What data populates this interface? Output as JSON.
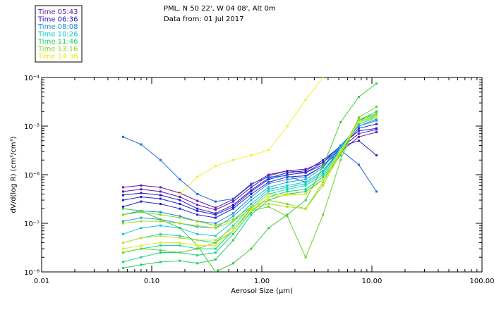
{
  "header": {
    "location": "PML, N 50 22', W 04 08', Alt 0m",
    "date_line": "Data from: 01 Jul 2017"
  },
  "chart_data": {
    "type": "line",
    "title": "PML, N 50 22', W 04 08', Alt 0m",
    "subtitle": "Data from: 01 Jul 2017",
    "xlabel": "Aerosol Size (μm)",
    "ylabel": "dV/d(log R) (cm³/cm³)",
    "xscale": "log",
    "yscale": "log",
    "xlim": [
      0.01,
      100.0
    ],
    "ylim": [
      1e-08,
      0.0001
    ],
    "x_ticks": [
      {
        "value": 0.01,
        "label": "0.01"
      },
      {
        "value": 0.1,
        "label": "0.10"
      },
      {
        "value": 1.0,
        "label": "1.00"
      },
      {
        "value": 10.0,
        "label": "10.00"
      },
      {
        "value": 100.0,
        "label": "100.00"
      }
    ],
    "y_ticks": [
      {
        "value": 1e-08,
        "label": "10⁻⁸"
      },
      {
        "value": 1e-07,
        "label": "10⁻⁷"
      },
      {
        "value": 1e-06,
        "label": "10⁻⁶"
      },
      {
        "value": 1e-05,
        "label": "10⁻⁵"
      },
      {
        "value": 0.0001,
        "label": "10⁻⁴"
      }
    ],
    "legend_position": "top-left, outside plot",
    "x": [
      0.055,
      0.08,
      0.12,
      0.18,
      0.26,
      0.38,
      0.55,
      0.8,
      1.15,
      1.7,
      2.5,
      3.6,
      5.2,
      7.6,
      11.0
    ],
    "series": [
      {
        "name": "Time 05:43",
        "color": "#6a1aa8",
        "values": [
          5.5e-07,
          6e-07,
          5.5e-07,
          4.2e-07,
          2.9e-07,
          2.1e-07,
          3.1e-07,
          6.2e-07,
          1e-06,
          1.2e-06,
          1.1e-06,
          1.6e-06,
          3e-06,
          6e-06,
          7.5e-06
        ]
      },
      {
        "name": "Time 05:43",
        "color": "#5a18b0",
        "values": [
          4.5e-07,
          5e-07,
          4.5e-07,
          3.5e-07,
          2.4e-07,
          1.9e-07,
          2.8e-07,
          5.5e-07,
          9.5e-07,
          1.2e-06,
          1.3e-06,
          1.8e-06,
          3.5e-06,
          7e-06,
          8.5e-06
        ]
      },
      {
        "name": "Time 06:36",
        "color": "#2a16c8",
        "values": [
          3.8e-07,
          4.2e-07,
          3.8e-07,
          3e-07,
          2e-07,
          1.6e-07,
          2.4e-07,
          4.8e-07,
          8.5e-07,
          1.1e-06,
          1.2e-06,
          2e-06,
          3.8e-06,
          5e-06,
          2.5e-06
        ]
      },
      {
        "name": "Time 06:36",
        "color": "#1e2ad2",
        "values": [
          3e-07,
          3.5e-07,
          3.2e-07,
          2.5e-07,
          1.8e-07,
          1.5e-07,
          2.2e-07,
          4.5e-07,
          8e-07,
          1e-06,
          1.1e-06,
          1.8e-06,
          4e-06,
          8e-06,
          9e-06
        ]
      },
      {
        "name": "Time 06:36",
        "color": "#2a1ed8",
        "values": [
          2.2e-07,
          2.8e-07,
          2.5e-07,
          2e-07,
          1.5e-07,
          1.3e-07,
          2e-07,
          4e-07,
          7e-07,
          9e-07,
          9.5e-07,
          1.5e-06,
          3.5e-06,
          9e-06,
          1.1e-05
        ]
      },
      {
        "name": "Time 08:08",
        "color": "#1a6ade",
        "values": [
          6e-06,
          4.2e-06,
          2e-06,
          8e-07,
          4e-07,
          2.8e-07,
          3.2e-07,
          6.5e-07,
          9e-07,
          9.5e-07,
          7e-07,
          1.2e-06,
          3.2e-06,
          1.6e-06,
          4.5e-07
        ]
      },
      {
        "name": "Time 08:08",
        "color": "#1a8ae0",
        "values": [
          1.5e-07,
          1.8e-07,
          1.7e-07,
          1.4e-07,
          1.1e-07,
          1e-07,
          1.6e-07,
          3.5e-07,
          6.5e-07,
          8e-07,
          9e-07,
          1.5e-06,
          4e-06,
          1e-05,
          1.3e-05
        ]
      },
      {
        "name": "Time 08:08",
        "color": "#18a8e0",
        "values": [
          1.1e-07,
          1.3e-07,
          1.2e-07,
          1e-07,
          8.5e-08,
          8e-08,
          1.4e-07,
          3e-07,
          5.5e-07,
          7e-07,
          8e-07,
          1.4e-06,
          3.8e-06,
          1e-05,
          1.4e-05
        ]
      },
      {
        "name": "Time 10:26",
        "color": "#14c8d8",
        "values": [
          6e-08,
          8e-08,
          9e-08,
          8e-08,
          6e-08,
          5.5e-08,
          1.1e-07,
          2.5e-07,
          5e-07,
          6e-07,
          7e-07,
          1.2e-06,
          3.5e-06,
          1.1e-05,
          1.5e-05
        ]
      },
      {
        "name": "Time 10:26",
        "color": "#12d4c0",
        "values": [
          4e-08,
          5e-08,
          6e-08,
          5.5e-08,
          4.5e-08,
          4e-08,
          9e-08,
          2.2e-07,
          4.5e-07,
          5.5e-07,
          6.5e-07,
          1.1e-06,
          3.2e-06,
          1.2e-05,
          1.6e-05
        ]
      },
      {
        "name": "Time 10:26",
        "color": "#10d8a8",
        "values": [
          2.5e-08,
          3e-08,
          3.5e-08,
          3.5e-08,
          3e-08,
          3e-08,
          7e-08,
          2e-07,
          4e-07,
          5e-07,
          6e-07,
          1e-06,
          3e-06,
          1.2e-05,
          1.7e-05
        ]
      },
      {
        "name": "Time 11:46",
        "color": "#12d48a",
        "values": [
          1.6e-08,
          2e-08,
          2.5e-08,
          2.5e-08,
          2.2e-08,
          2.5e-08,
          6e-08,
          1.7e-07,
          3.5e-07,
          4.5e-07,
          5e-07,
          9e-07,
          2.8e-06,
          1.3e-05,
          1.8e-05
        ]
      },
      {
        "name": "Time 11:46",
        "color": "#20d060",
        "values": [
          1.2e-08,
          1.4e-08,
          1.6e-08,
          1.7e-08,
          1.5e-08,
          1.8e-08,
          4.5e-08,
          1.5e-07,
          3e-07,
          4e-07,
          4.5e-07,
          8e-07,
          2.5e-06,
          1.3e-05,
          2e-05
        ]
      },
      {
        "name": "Time 11:46",
        "color": "#3ccc3c",
        "values": [
          2e-07,
          1.8e-07,
          1.2e-07,
          8e-08,
          3.5e-08,
          1e-08,
          1.5e-08,
          3e-08,
          8e-08,
          1.5e-07,
          3e-07,
          1.5e-06,
          1.2e-05,
          4e-05,
          7.5e-05
        ]
      },
      {
        "name": "Time 13:16",
        "color": "#6ad428",
        "values": [
          2.5e-08,
          3e-08,
          2.8e-08,
          2.5e-08,
          3e-08,
          4e-08,
          7e-08,
          1.8e-07,
          2.2e-07,
          1.4e-07,
          2e-08,
          1.5e-07,
          2e-06,
          1.5e-05,
          2.5e-05
        ]
      },
      {
        "name": "Time 13:16",
        "color": "#8ad820",
        "values": [
          1.5e-07,
          1.7e-07,
          1.5e-07,
          1.3e-07,
          1.1e-07,
          9e-08,
          1.2e-07,
          2.2e-07,
          3e-07,
          2.5e-07,
          2e-07,
          7e-07,
          3e-06,
          1.4e-05,
          1.8e-05
        ]
      },
      {
        "name": "Time 13:16",
        "color": "#a8dc1c",
        "values": [
          1e-07,
          1.1e-07,
          1.1e-07,
          1e-07,
          9e-08,
          8e-08,
          1.1e-07,
          2e-07,
          2.5e-07,
          2.2e-07,
          2e-07,
          6e-07,
          2.8e-06,
          1.3e-05,
          1.5e-05
        ]
      },
      {
        "name": "Time 14:36",
        "color": "#c8e01c",
        "values": [
          4e-08,
          5e-08,
          5.5e-08,
          5e-08,
          4.5e-08,
          4.5e-08,
          8e-08,
          2e-07,
          4e-07,
          4e-07,
          4e-07,
          8e-07,
          3e-06,
          1.2e-05,
          1.6e-05
        ]
      },
      {
        "name": "Time 14:36",
        "color": "#e4ec1c",
        "values": [
          3e-08,
          3.5e-08,
          4e-08,
          4e-08,
          3.5e-08,
          3.5e-08,
          7e-08,
          1.8e-07,
          3.5e-07,
          3.8e-07,
          4e-07,
          8e-07,
          3.2e-06,
          1.2e-05,
          1.5e-05
        ]
      },
      {
        "name": "Time 14:36",
        "color": "#f2f02a",
        "values": [
          null,
          null,
          null,
          4e-07,
          9e-07,
          1.5e-06,
          2e-06,
          2.5e-06,
          3.2e-06,
          1e-05,
          3.5e-05,
          0.0001,
          null,
          null,
          null
        ]
      }
    ]
  },
  "legend": [
    {
      "label": "Time 05:43",
      "color": "#6a1aa8"
    },
    {
      "label": "Time 06:36",
      "color": "#2a16c8"
    },
    {
      "label": "Time 08:08",
      "color": "#1a8ae0"
    },
    {
      "label": "Time 10:26",
      "color": "#14c8d8"
    },
    {
      "label": "Time 11:46",
      "color": "#20d060"
    },
    {
      "label": "Time 13:16",
      "color": "#8ad820"
    },
    {
      "label": "Time 14:36",
      "color": "#e4ec1c"
    }
  ]
}
